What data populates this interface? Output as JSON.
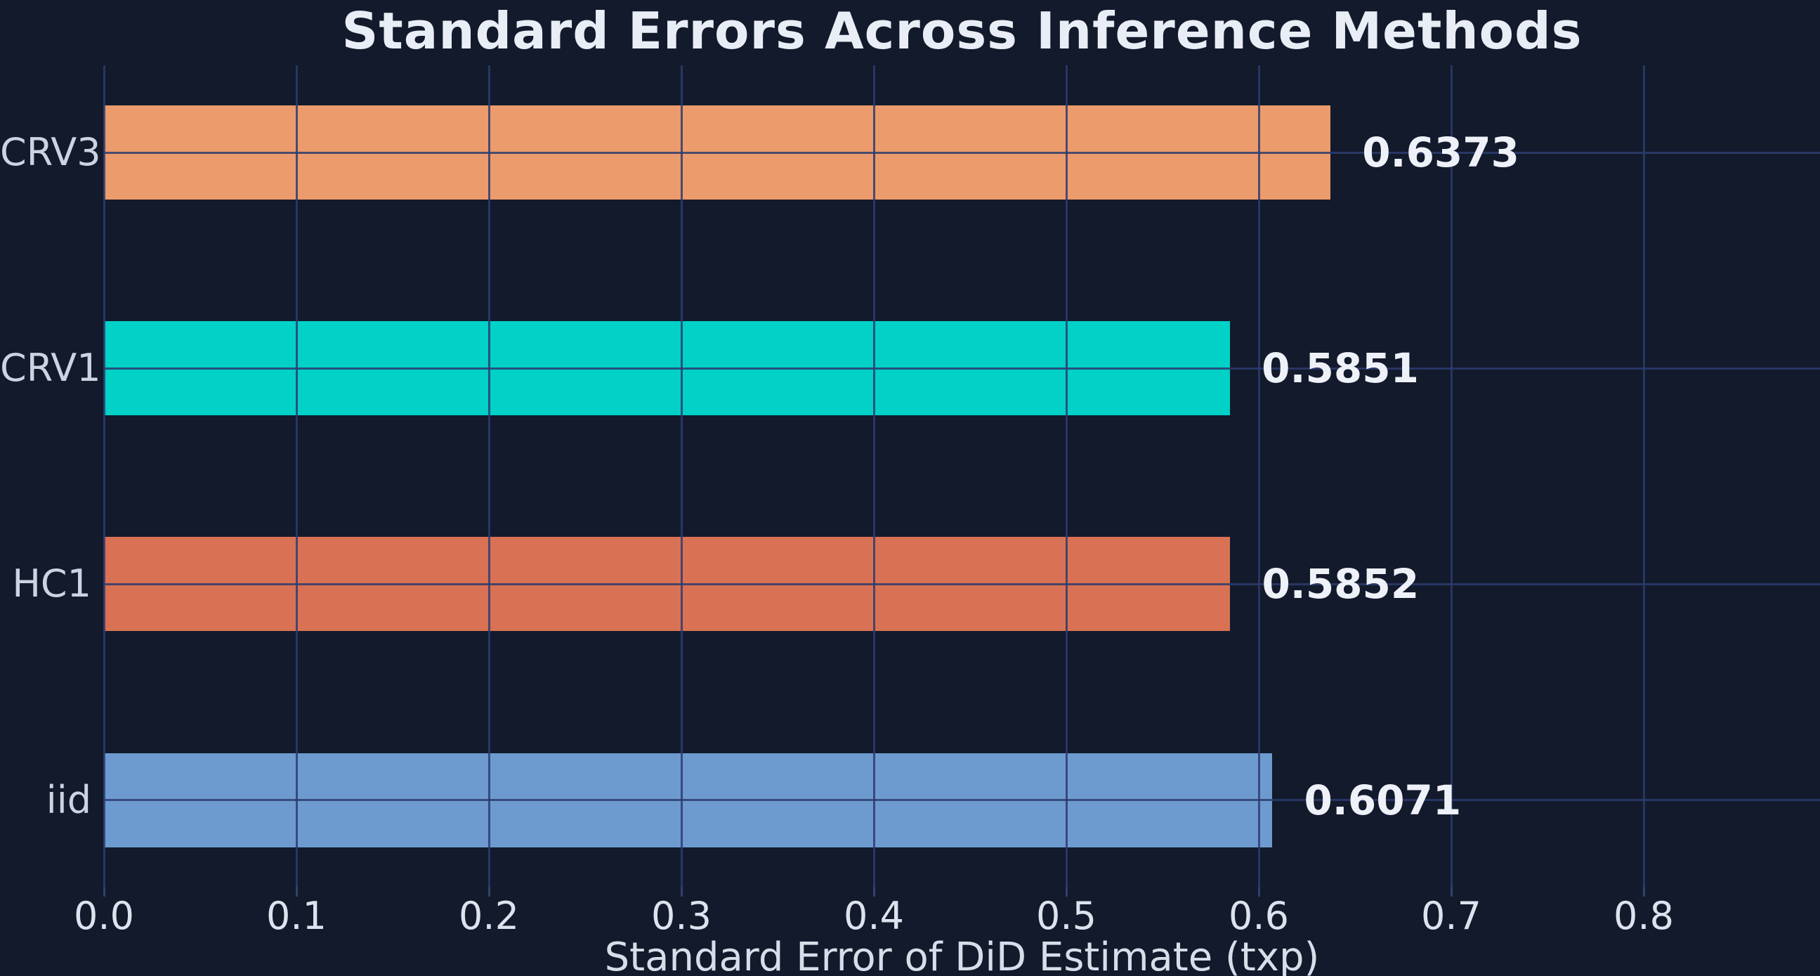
{
  "chart_data": {
    "type": "bar",
    "orientation": "horizontal",
    "title": "Standard Errors Across Inference Methods",
    "xlabel": "Standard Error of DiD Estimate (txp)",
    "ylabel": "",
    "categories": [
      "CRV3",
      "CRV1",
      "HC1",
      "iid"
    ],
    "values": [
      0.6373,
      0.5851,
      0.5852,
      0.6071
    ],
    "value_labels": [
      "0.6373",
      "0.5851",
      "0.5852",
      "0.6071"
    ],
    "bar_colors": [
      "#ec9b6d",
      "#01d1c7",
      "#d97254",
      "#6d9bd0"
    ],
    "x_ticks": [
      {
        "value": 0.0,
        "label": "0.0"
      },
      {
        "value": 0.1,
        "label": "0.1"
      },
      {
        "value": 0.2,
        "label": "0.2"
      },
      {
        "value": 0.3,
        "label": "0.3"
      },
      {
        "value": 0.4,
        "label": "0.4"
      },
      {
        "value": 0.5,
        "label": "0.5"
      },
      {
        "value": 0.6,
        "label": "0.6"
      },
      {
        "value": 0.7,
        "label": "0.7"
      },
      {
        "value": 0.8,
        "label": "0.8"
      }
    ],
    "xlim": [
      0.0,
      0.8916
    ],
    "grid": true,
    "grid_on_top_of_bars": true,
    "legend": false,
    "colors": {
      "background": "#121a2c",
      "gridline": "#2d3c6e",
      "title_text": "#e9edf5",
      "tick_text": "#dde2ee",
      "category_text": "#ccd3e1",
      "value_text": "#eef1f8",
      "xlabel_text": "#d8dee9"
    }
  }
}
